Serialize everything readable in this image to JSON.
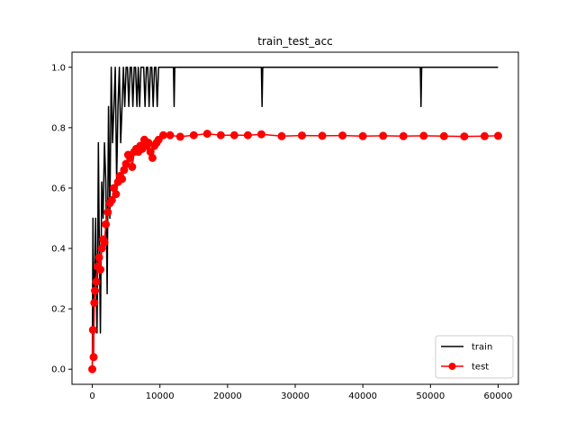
{
  "chart_data": {
    "type": "line",
    "title": "train_test_acc",
    "xlabel": "",
    "ylabel": "",
    "xlim": [
      -3000,
      63000
    ],
    "ylim": [
      -0.05,
      1.05
    ],
    "xticks": [
      0,
      10000,
      20000,
      30000,
      40000,
      50000,
      60000
    ],
    "xtick_labels": [
      "0",
      "10000",
      "20000",
      "30000",
      "40000",
      "50000",
      "60000"
    ],
    "yticks": [
      0.0,
      0.2,
      0.4,
      0.6,
      0.8,
      1.0
    ],
    "ytick_labels": [
      "0.0",
      "0.2",
      "0.4",
      "0.6",
      "0.8",
      "1.0"
    ],
    "grid": false,
    "legend_position": "bottom-right",
    "series": [
      {
        "name": "train",
        "color": "#000000",
        "marker": "none",
        "x": [
          0,
          100,
          200,
          300,
          400,
          500,
          600,
          700,
          800,
          900,
          1000,
          1200,
          1400,
          1600,
          1800,
          2000,
          2200,
          2400,
          2600,
          2800,
          3000,
          3200,
          3400,
          3600,
          3800,
          4000,
          4200,
          4400,
          4600,
          4800,
          5000,
          5200,
          5400,
          5600,
          5800,
          6000,
          6200,
          6400,
          6600,
          6800,
          7000,
          7200,
          7400,
          7600,
          7800,
          8000,
          8200,
          8400,
          8600,
          8800,
          9000,
          9200,
          9400,
          9600,
          9800,
          10000,
          10200,
          12000,
          12100,
          12200,
          13000,
          25000,
          25100,
          25200,
          26000,
          48500,
          48600,
          48700,
          50000,
          60000
        ],
        "y": [
          0.0,
          0.5,
          0.12,
          0.25,
          0.37,
          0.5,
          0.25,
          0.12,
          0.37,
          0.75,
          0.5,
          0.12,
          0.62,
          0.5,
          0.75,
          0.62,
          0.25,
          0.87,
          0.5,
          1.0,
          0.75,
          0.87,
          1.0,
          0.62,
          0.87,
          1.0,
          0.75,
          0.87,
          1.0,
          0.87,
          1.0,
          1.0,
          0.87,
          1.0,
          1.0,
          0.87,
          1.0,
          1.0,
          0.87,
          1.0,
          0.87,
          1.0,
          1.0,
          1.0,
          0.87,
          1.0,
          1.0,
          0.87,
          1.0,
          1.0,
          0.87,
          1.0,
          1.0,
          0.87,
          1.0,
          1.0,
          1.0,
          1.0,
          0.87,
          1.0,
          1.0,
          1.0,
          0.87,
          1.0,
          1.0,
          1.0,
          0.87,
          1.0,
          1.0,
          1.0
        ]
      },
      {
        "name": "test",
        "color": "#ff0000",
        "marker": "circle",
        "x": [
          0,
          100,
          200,
          300,
          400,
          600,
          800,
          1000,
          1200,
          1400,
          1600,
          1800,
          2000,
          2300,
          2600,
          2900,
          3200,
          3500,
          3800,
          4100,
          4400,
          4700,
          5000,
          5300,
          5600,
          5900,
          6200,
          6500,
          6800,
          7100,
          7400,
          7700,
          8000,
          8300,
          8600,
          8900,
          9200,
          9500,
          9800,
          10500,
          11500,
          13000,
          15000,
          17000,
          19000,
          21000,
          23000,
          25000,
          28000,
          31000,
          34000,
          37000,
          40000,
          43000,
          46000,
          49000,
          52000,
          55000,
          58000,
          60000
        ],
        "y": [
          0.0,
          0.13,
          0.04,
          0.22,
          0.26,
          0.29,
          0.34,
          0.37,
          0.33,
          0.4,
          0.43,
          0.42,
          0.48,
          0.52,
          0.55,
          0.56,
          0.6,
          0.58,
          0.62,
          0.64,
          0.63,
          0.66,
          0.68,
          0.71,
          0.7,
          0.67,
          0.72,
          0.73,
          0.72,
          0.74,
          0.73,
          0.76,
          0.74,
          0.75,
          0.72,
          0.7,
          0.74,
          0.75,
          0.76,
          0.775,
          0.775,
          0.77,
          0.775,
          0.78,
          0.775,
          0.775,
          0.775,
          0.778,
          0.772,
          0.774,
          0.773,
          0.774,
          0.772,
          0.773,
          0.772,
          0.773,
          0.772,
          0.771,
          0.772,
          0.773
        ]
      }
    ]
  }
}
